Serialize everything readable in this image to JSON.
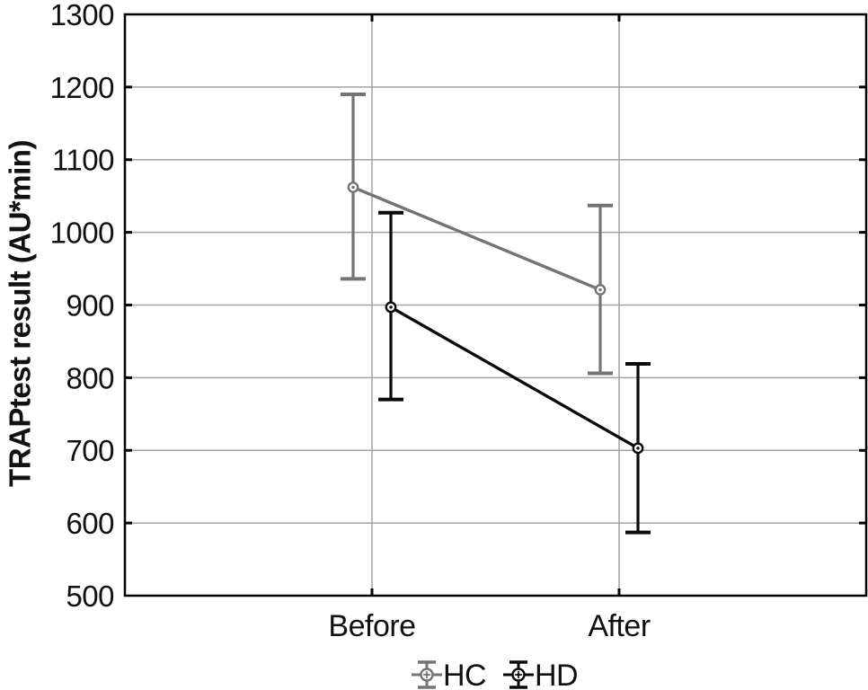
{
  "figure": {
    "background": "#ffffff"
  },
  "chart_data": {
    "type": "line",
    "title": "",
    "categories": [
      "Before",
      "After"
    ],
    "series": [
      {
        "name": "HC",
        "color": "#747474",
        "values": [
          1062,
          921
        ],
        "ci_low": [
          936,
          806
        ],
        "ci_high": [
          1190,
          1037
        ]
      },
      {
        "name": "HD",
        "color": "#0a0a0a",
        "values": [
          897,
          703
        ],
        "ci_low": [
          770,
          587
        ],
        "ci_high": [
          1027,
          819
        ]
      }
    ],
    "xlabel": "",
    "ylabel": "TRAPtest result (AU*min)",
    "ylim": [
      500,
      1300
    ],
    "ytick_step": 100,
    "grid": true,
    "marker": "circle-dot",
    "error_bars": "whisker-caps",
    "legend": {
      "position": "bottom-center",
      "entries": [
        "HC",
        "HD"
      ]
    },
    "axis_color": "#000000",
    "grid_color": "#a2a2a2",
    "tick_label_color": "#111111"
  }
}
